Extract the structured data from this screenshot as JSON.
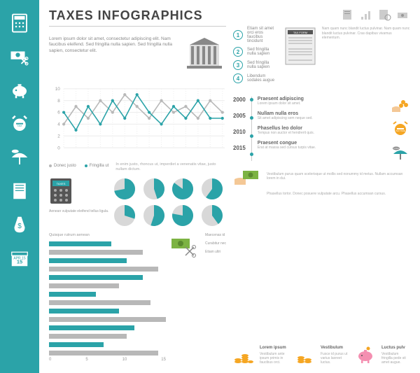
{
  "colors": {
    "teal": "#2ba3a8",
    "teal_dark": "#1e7d82",
    "gray": "#b8b8b8",
    "gray_light": "#d8d8d8",
    "text": "#555555",
    "text_light": "#999999",
    "green": "#7cb342",
    "orange": "#f5a623"
  },
  "title": "TAXES INFOGRAPHICS",
  "intro": "Lorem ipsum dolor sit amet, consectetur adipiscing elit. Nam faucibus eleifend. Sed fringilla nulla sapien. Sed fringilla nulla sapien, consectetur elit.",
  "line_chart": {
    "ylim": [
      0,
      10
    ],
    "ytick_step": 2,
    "xlim": [
      0,
      14
    ],
    "series": [
      {
        "name": "Donec justo",
        "color": "#b8b8b8",
        "points": [
          [
            0,
            4
          ],
          [
            1,
            7
          ],
          [
            2,
            5
          ],
          [
            3,
            8
          ],
          [
            4,
            6
          ],
          [
            5,
            9
          ],
          [
            6,
            7
          ],
          [
            7,
            5
          ],
          [
            8,
            8
          ],
          [
            9,
            6
          ],
          [
            10,
            7
          ],
          [
            11,
            5
          ],
          [
            12,
            8
          ],
          [
            13,
            6
          ]
        ]
      },
      {
        "name": "Fringilla ut",
        "color": "#2ba3a8",
        "points": [
          [
            0,
            6
          ],
          [
            1,
            3
          ],
          [
            2,
            7
          ],
          [
            3,
            4
          ],
          [
            4,
            8
          ],
          [
            5,
            5
          ],
          [
            6,
            9
          ],
          [
            7,
            6
          ],
          [
            8,
            4
          ],
          [
            9,
            7
          ],
          [
            10,
            5
          ],
          [
            11,
            8
          ],
          [
            12,
            5
          ],
          [
            13,
            5
          ]
        ]
      }
    ],
    "note": "In enim justo, rhoncus ut, imperdiet a venenatis vitae, justo nullam dictum."
  },
  "pies": {
    "caption": "Aenean vulputate eleifend tellus ligula.",
    "values": [
      72,
      45,
      85,
      60,
      30,
      55,
      78,
      40
    ],
    "fill_color": "#2ba3a8",
    "empty_color": "#d8d8d8"
  },
  "bars": {
    "title": "Quisque rutrum aenean",
    "series": [
      {
        "color": "#2ba3a8",
        "values": [
          8,
          10,
          12,
          6,
          9,
          11,
          7
        ]
      },
      {
        "color": "#b8b8b8",
        "values": [
          12,
          14,
          9,
          13,
          15,
          10,
          14
        ]
      }
    ],
    "xmax": 15,
    "xticks": [
      0,
      5,
      10,
      15
    ],
    "labels": [
      "Maecenas id",
      "Curabitur nec",
      "Etiam ultri"
    ]
  },
  "numbered": [
    "Etiam sit amet orci eros faucibus tincidunt",
    "Sed fringilla nulla sapien",
    "Sed fringilla nulla sapien",
    "Libendum sodales augue"
  ],
  "form_title": "TAX FORM",
  "form_text": "Nam quam nunc blandit luctus pulvinar. Nam quam nunc blandit luctus pulvinar. Cras dapibus vivamus elementum.",
  "timeline": [
    {
      "year": "2000",
      "title": "Praesent adipiscing",
      "text": "Lorem ipsum dolor sit amet."
    },
    {
      "year": "2005",
      "title": "Nullam nulla eros",
      "text": "Sit amet adipiscing sem neque sed."
    },
    {
      "year": "2010",
      "title": "Phasellus leo dolor",
      "text": "Tempus non auctor et hendrerit quis."
    },
    {
      "year": "2015",
      "title": "Praesent congue",
      "text": "Erat at massa sed cursus turpis vitae."
    }
  ],
  "tax_time_label": "TAX TIME",
  "taxes_label": "TAXES",
  "money_text": "Vestibulum purus quam scelerisque ut mollis sed nonummy id metus. Nullam accumsan lorem in dui.",
  "money_text2": "Phasellus tortor. Donec posuere vulputate arcu. Phasellus accumsan cursus.",
  "bottom_items": [
    {
      "title": "Lorem ipsum",
      "text": "Vestibulum ante ipsum primis in faucibus orci."
    },
    {
      "title": "Vestibulum",
      "text": "Fusce id purus ut varius laoreet luctus."
    },
    {
      "title": "Luctus pulv",
      "text": "Vestibulum fringilla pede sit amet augue."
    }
  ],
  "calendar_date": "APR 15"
}
